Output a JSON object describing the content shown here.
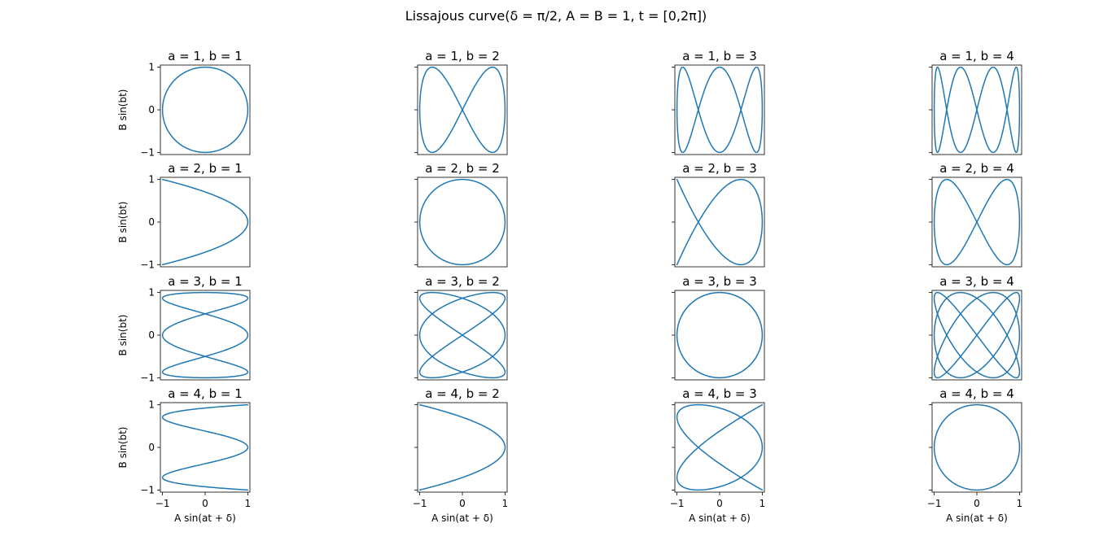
{
  "figure": {
    "title": "Lissajous curve(δ = π/2, A = B = 1, t = [0,2π])"
  },
  "chart_data": {
    "type": "line",
    "grid": false,
    "line_color": "#1f77b4",
    "rows": 4,
    "cols": 4,
    "equation": {
      "x": "A sin(at + δ)",
      "y": "B sin(bt)",
      "A": 1,
      "B": 1,
      "delta": "π/2",
      "t_range": [
        0,
        6.283185307
      ]
    },
    "xlabel": "A sin(at + δ)",
    "ylabel": "B sin(bt)",
    "xlim": [
      -1.05,
      1.05
    ],
    "ylim": [
      -1.05,
      1.05
    ],
    "xticks": [
      -1,
      0,
      1
    ],
    "yticks": [
      -1,
      0,
      1
    ],
    "xtick_labels": [
      "−1",
      "0",
      "1"
    ],
    "ytick_labels": [
      "−1",
      "0",
      "1"
    ],
    "subplots": [
      {
        "title": "a = 1, b = 1",
        "a": 1,
        "b": 1
      },
      {
        "title": "a = 1, b = 2",
        "a": 1,
        "b": 2
      },
      {
        "title": "a = 1, b = 3",
        "a": 1,
        "b": 3
      },
      {
        "title": "a = 1, b = 4",
        "a": 1,
        "b": 4
      },
      {
        "title": "a = 2, b = 1",
        "a": 2,
        "b": 1
      },
      {
        "title": "a = 2, b = 2",
        "a": 2,
        "b": 2
      },
      {
        "title": "a = 2, b = 3",
        "a": 2,
        "b": 3
      },
      {
        "title": "a = 2, b = 4",
        "a": 2,
        "b": 4
      },
      {
        "title": "a = 3, b = 1",
        "a": 3,
        "b": 1
      },
      {
        "title": "a = 3, b = 2",
        "a": 3,
        "b": 2
      },
      {
        "title": "a = 3, b = 3",
        "a": 3,
        "b": 3
      },
      {
        "title": "a = 3, b = 4",
        "a": 3,
        "b": 4
      },
      {
        "title": "a = 4, b = 1",
        "a": 4,
        "b": 1
      },
      {
        "title": "a = 4, b = 2",
        "a": 4,
        "b": 2
      },
      {
        "title": "a = 4, b = 3",
        "a": 4,
        "b": 3
      },
      {
        "title": "a = 4, b = 4",
        "a": 4,
        "b": 4
      }
    ]
  }
}
